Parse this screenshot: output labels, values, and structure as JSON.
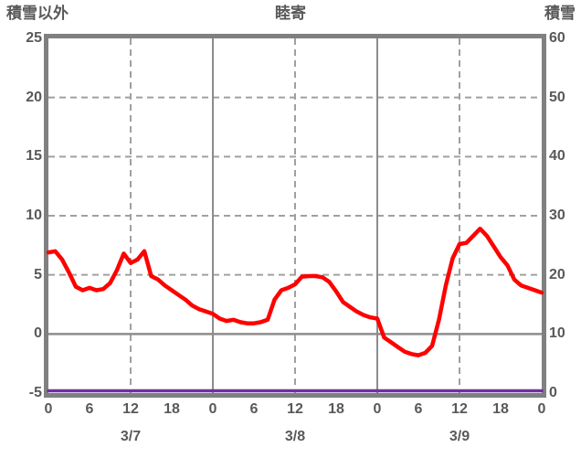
{
  "header": {
    "left_label": "積雪以外",
    "title": "睦寄",
    "right_label": "積雪"
  },
  "chart_data": {
    "type": "line",
    "title": "睦寄",
    "left_axis": {
      "label": "積雪以外",
      "min": -5,
      "max": 25,
      "ticks": [
        25,
        20,
        15,
        10,
        5,
        0,
        -5
      ]
    },
    "right_axis": {
      "label": "積雪",
      "min": 0,
      "max": 60,
      "ticks": [
        60,
        50,
        40,
        30,
        20,
        10,
        0
      ]
    },
    "x_axis": {
      "unit": "hour",
      "span_hours": 72,
      "tick_hours": [
        0,
        6,
        12,
        18,
        24,
        30,
        36,
        42,
        48,
        54,
        60,
        66,
        72
      ],
      "tick_labels": [
        "0",
        "6",
        "12",
        "18",
        "0",
        "6",
        "12",
        "18",
        "0",
        "6",
        "12",
        "18",
        "0"
      ],
      "date_labels": [
        {
          "text": "3/7",
          "hour": 12
        },
        {
          "text": "3/8",
          "hour": 36
        },
        {
          "text": "3/9",
          "hour": 60
        }
      ]
    },
    "grid": {
      "horizontal_dashed_at_left_values": [
        20,
        15,
        10,
        5
      ],
      "horizontal_solid_at_left_values": [
        0
      ],
      "vertical_dashed_at_hours": [
        12,
        36,
        60
      ],
      "vertical_solid_at_hours": [
        24,
        48
      ]
    },
    "series": [
      {
        "name": "積雪以外",
        "axis": "left",
        "color": "#ff0000",
        "values": [
          6.9,
          7.0,
          6.3,
          5.2,
          4.0,
          3.7,
          3.9,
          3.7,
          3.8,
          4.3,
          5.4,
          6.8,
          6.0,
          6.3,
          7.0,
          4.9,
          4.6,
          4.1,
          3.7,
          3.3,
          2.9,
          2.4,
          2.1,
          1.9,
          1.7,
          1.3,
          1.1,
          1.2,
          1.0,
          0.9,
          0.9,
          1.0,
          1.2,
          2.9,
          3.7,
          3.9,
          4.2,
          4.85,
          4.9,
          4.9,
          4.8,
          4.4,
          3.6,
          2.7,
          2.3,
          1.9,
          1.6,
          1.4,
          1.3,
          -0.3,
          -0.7,
          -1.1,
          -1.5,
          -1.7,
          -1.8,
          -1.6,
          -1.0,
          1.2,
          4.1,
          6.4,
          7.6,
          7.7,
          8.3,
          8.9,
          8.3,
          7.4,
          6.5,
          5.8,
          4.6,
          4.1,
          3.9,
          3.7,
          3.5
        ]
      },
      {
        "name": "積雪",
        "axis": "right",
        "color": "#7030a0",
        "values": [
          0,
          0
        ]
      }
    ],
    "colors": {
      "frame": "#808080",
      "grid_solid": "#8c8c8c",
      "grid_dashed": "#a0a0a0",
      "text": "#595959",
      "series_red": "#ff0000",
      "series_purple": "#7030a0"
    },
    "legend": "none",
    "background": "#ffffff"
  }
}
